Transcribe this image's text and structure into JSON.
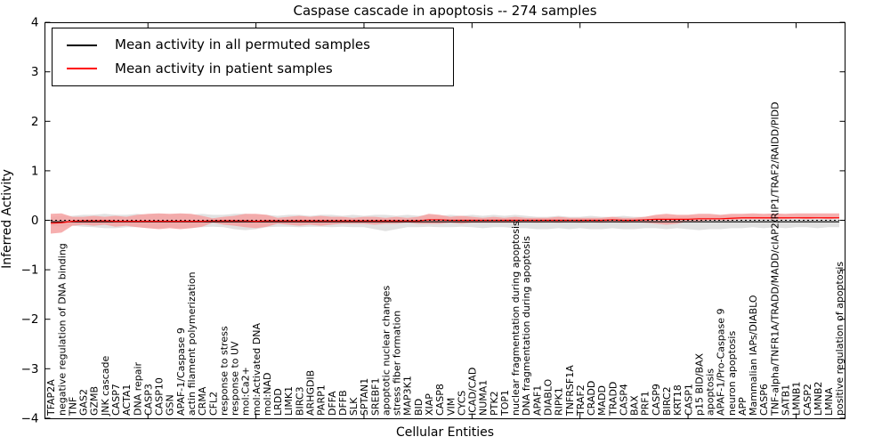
{
  "legend": {
    "entries": [
      {
        "label": "Mean activity in all permuted samples",
        "color": "#000000"
      },
      {
        "label": "Mean activity in patient samples",
        "color": "#ff0000"
      }
    ]
  },
  "chart_data": {
    "type": "line",
    "title": "Caspase cascade in apoptosis -- 274 samples",
    "xlabel": "Cellular Entities",
    "ylabel": "Inferred Activity",
    "ylim": [
      -4,
      4
    ],
    "yticks": [
      4,
      3,
      2,
      1,
      0,
      -1,
      -2,
      -3,
      -4
    ],
    "ytick_labels": [
      "4",
      "3",
      "2",
      "1",
      "0",
      "−1",
      "−2",
      "−3",
      "−4"
    ],
    "xtick_indices": [
      9,
      19,
      29,
      39,
      49,
      59,
      69
    ],
    "grid": false,
    "legend_position": "upper left",
    "zero_line": {
      "value": 0,
      "style": "dashed",
      "color": "#000000"
    },
    "categories": [
      "TFAP2A",
      "negative regulation of DNA binding",
      "TNF",
      "GAS2",
      "GZMB",
      "JNK cascade",
      "CASP7",
      "ACTA1",
      "DNA repair",
      "CASP3",
      "CASP10",
      "GSN",
      "APAF-1/Caspase 9",
      "actin filament polymerization",
      "CRMA",
      "CFL2",
      "response to stress",
      "response to UV",
      "mol:Ca2+",
      "mol:Activated DNA",
      "mol:NAD",
      "LRDD",
      "LIMK1",
      "BIRC3",
      "ARHGDIB",
      "PARP1",
      "DFFA",
      "DFFB",
      "SLK",
      "SPTAN1",
      "SREBF1",
      "apoptotic nuclear changes",
      "stress fiber formation",
      "MAP3K1",
      "BID",
      "XIAP",
      "CASP8",
      "VIM",
      "CYCS",
      "ICAD/CAD",
      "NUMA1",
      "PTK2",
      "TOP1",
      "nuclear fragmentation during apoptosis",
      "DNA fragmentation during apoptosis",
      "APAF1",
      "DIABLO",
      "RIPK1",
      "TNFRSF1A",
      "TRAF2",
      "CRADD",
      "MADD",
      "TRADD",
      "CASP4",
      "BAX",
      "PRF1",
      "CASP9",
      "BIRC2",
      "KRT18",
      "CASP1",
      "p15 BID/BAX",
      "apoptosis",
      "APAF-1/Pro-Caspase 9",
      "neuron apoptosis",
      "APP",
      "Mammalian IAPs/DIABLO",
      "CASP6",
      "TNF-alpha/TNFR1A/TRADD/MADD/cIAP2/RIP1/TRAF2/RAIDD/PIDD",
      "SATB1",
      "LMNB1",
      "CASP2",
      "LMNB2",
      "LMNA",
      "positive regulation of apoptosis"
    ],
    "series": [
      {
        "name": "Mean activity in all permuted samples",
        "color": "#000000",
        "band_color": "#dcdcdc",
        "values": [
          -0.03,
          -0.03,
          -0.03,
          -0.03,
          -0.03,
          -0.03,
          -0.03,
          -0.03,
          -0.03,
          -0.03,
          -0.03,
          -0.03,
          -0.03,
          -0.03,
          -0.03,
          -0.03,
          -0.03,
          -0.03,
          -0.03,
          -0.03,
          -0.03,
          -0.03,
          -0.03,
          -0.03,
          -0.03,
          -0.03,
          -0.03,
          -0.03,
          -0.03,
          -0.03,
          -0.03,
          -0.03,
          -0.03,
          -0.03,
          -0.03,
          -0.03,
          -0.03,
          -0.03,
          -0.03,
          -0.03,
          -0.03,
          -0.03,
          -0.03,
          -0.03,
          -0.03,
          -0.03,
          -0.03,
          -0.03,
          -0.03,
          -0.03,
          -0.03,
          -0.03,
          -0.03,
          -0.03,
          -0.03,
          -0.03,
          -0.03,
          -0.03,
          -0.03,
          -0.03,
          -0.03,
          -0.03,
          -0.03,
          -0.03,
          -0.03,
          -0.03,
          -0.03,
          -0.03,
          -0.03,
          -0.03,
          -0.03,
          -0.03,
          -0.03,
          -0.03
        ],
        "band_upper": [
          0.07,
          0.09,
          0.09,
          0.11,
          0.11,
          0.13,
          0.11,
          0.11,
          0.13,
          0.11,
          0.13,
          0.11,
          0.13,
          0.11,
          0.13,
          0.11,
          0.11,
          0.13,
          0.13,
          0.11,
          0.11,
          0.09,
          0.11,
          0.11,
          0.09,
          0.11,
          0.11,
          0.09,
          0.11,
          0.09,
          0.11,
          0.11,
          0.09,
          0.11,
          0.09,
          0.11,
          0.09,
          0.11,
          0.09,
          0.11,
          0.09,
          0.11,
          0.09,
          0.11,
          0.09,
          0.07,
          0.07,
          0.09,
          0.07,
          0.07,
          0.09,
          0.07,
          0.07,
          0.09,
          0.07,
          0.07,
          0.09,
          0.07,
          0.07,
          0.09,
          0.07,
          0.07,
          0.09,
          0.07,
          0.07,
          0.09,
          0.07,
          0.07,
          0.07,
          0.07,
          0.09,
          0.07,
          0.07,
          0.07
        ],
        "band_lower": [
          -0.11,
          -0.13,
          -0.11,
          -0.13,
          -0.14,
          -0.16,
          -0.16,
          -0.14,
          -0.14,
          -0.16,
          -0.16,
          -0.14,
          -0.16,
          -0.16,
          -0.14,
          -0.13,
          -0.14,
          -0.18,
          -0.2,
          -0.18,
          -0.14,
          -0.13,
          -0.13,
          -0.14,
          -0.13,
          -0.13,
          -0.14,
          -0.13,
          -0.14,
          -0.14,
          -0.18,
          -0.22,
          -0.18,
          -0.14,
          -0.14,
          -0.13,
          -0.14,
          -0.14,
          -0.13,
          -0.14,
          -0.16,
          -0.14,
          -0.14,
          -0.16,
          -0.16,
          -0.18,
          -0.18,
          -0.16,
          -0.18,
          -0.16,
          -0.18,
          -0.18,
          -0.16,
          -0.18,
          -0.18,
          -0.16,
          -0.16,
          -0.18,
          -0.16,
          -0.18,
          -0.2,
          -0.18,
          -0.18,
          -0.16,
          -0.16,
          -0.14,
          -0.16,
          -0.14,
          -0.16,
          -0.14,
          -0.14,
          -0.16,
          -0.14,
          -0.14
        ]
      },
      {
        "name": "Mean activity in patient samples",
        "color": "#ff0000",
        "band_color": "#f4a1a1",
        "values": [
          -0.06,
          -0.05,
          -0.02,
          -0.01,
          -0.01,
          -0.01,
          -0.02,
          -0.02,
          -0.02,
          -0.02,
          -0.02,
          -0.02,
          -0.02,
          -0.02,
          -0.02,
          -0.01,
          -0.01,
          -0.01,
          -0.01,
          -0.02,
          -0.01,
          -0.01,
          -0.01,
          -0.01,
          -0.01,
          -0.01,
          -0.01,
          -0.01,
          -0.01,
          -0.01,
          -0.01,
          -0.01,
          -0.01,
          -0.01,
          -0.01,
          0.01,
          0.01,
          0,
          0,
          0,
          0,
          0,
          0,
          0,
          0,
          0,
          0,
          0,
          0,
          0,
          0,
          0,
          0.01,
          0,
          0,
          0.01,
          0.02,
          0.02,
          0.02,
          0.02,
          0.03,
          0.03,
          0.03,
          0.04,
          0.05,
          0.05,
          0.05,
          0.05,
          0.05,
          0.05,
          0.05,
          0.05,
          0.05,
          0.05
        ],
        "band_upper": [
          0.13,
          0.14,
          0.07,
          0.07,
          0.09,
          0.07,
          0.09,
          0.07,
          0.11,
          0.13,
          0.14,
          0.13,
          0.14,
          0.13,
          0.09,
          0.04,
          0.07,
          0.09,
          0.13,
          0.13,
          0.11,
          0.05,
          0.07,
          0.09,
          0.07,
          0.09,
          0.07,
          0.07,
          0.05,
          0.07,
          0.07,
          0.05,
          0.07,
          0.05,
          0.07,
          0.13,
          0.11,
          0.07,
          0.09,
          0.07,
          0.05,
          0.07,
          0.05,
          0.07,
          0.05,
          0.05,
          0.05,
          0.07,
          0.05,
          0.05,
          0.05,
          0.05,
          0.07,
          0.05,
          0.05,
          0.07,
          0.11,
          0.13,
          0.11,
          0.11,
          0.13,
          0.13,
          0.11,
          0.13,
          0.13,
          0.14,
          0.13,
          0.14,
          0.13,
          0.14,
          0.14,
          0.14,
          0.14,
          0.14
        ],
        "band_lower": [
          -0.27,
          -0.25,
          -0.11,
          -0.09,
          -0.11,
          -0.09,
          -0.13,
          -0.11,
          -0.14,
          -0.16,
          -0.18,
          -0.16,
          -0.18,
          -0.16,
          -0.13,
          -0.05,
          -0.09,
          -0.11,
          -0.14,
          -0.16,
          -0.13,
          -0.07,
          -0.09,
          -0.11,
          -0.09,
          -0.11,
          -0.09,
          -0.07,
          -0.07,
          -0.07,
          -0.09,
          -0.07,
          -0.07,
          -0.05,
          -0.07,
          -0.07,
          -0.07,
          -0.05,
          -0.07,
          -0.05,
          -0.05,
          -0.05,
          -0.05,
          -0.05,
          -0.04,
          -0.05,
          -0.04,
          -0.05,
          -0.04,
          -0.05,
          -0.04,
          -0.05,
          -0.04,
          -0.05,
          -0.04,
          -0.05,
          -0.07,
          -0.09,
          -0.07,
          -0.02,
          -0.02,
          0,
          0,
          0,
          0.02,
          0.02,
          0.02,
          0.02,
          0.02,
          0.04,
          0.02,
          0.04,
          0.02,
          0.04
        ]
      }
    ]
  }
}
